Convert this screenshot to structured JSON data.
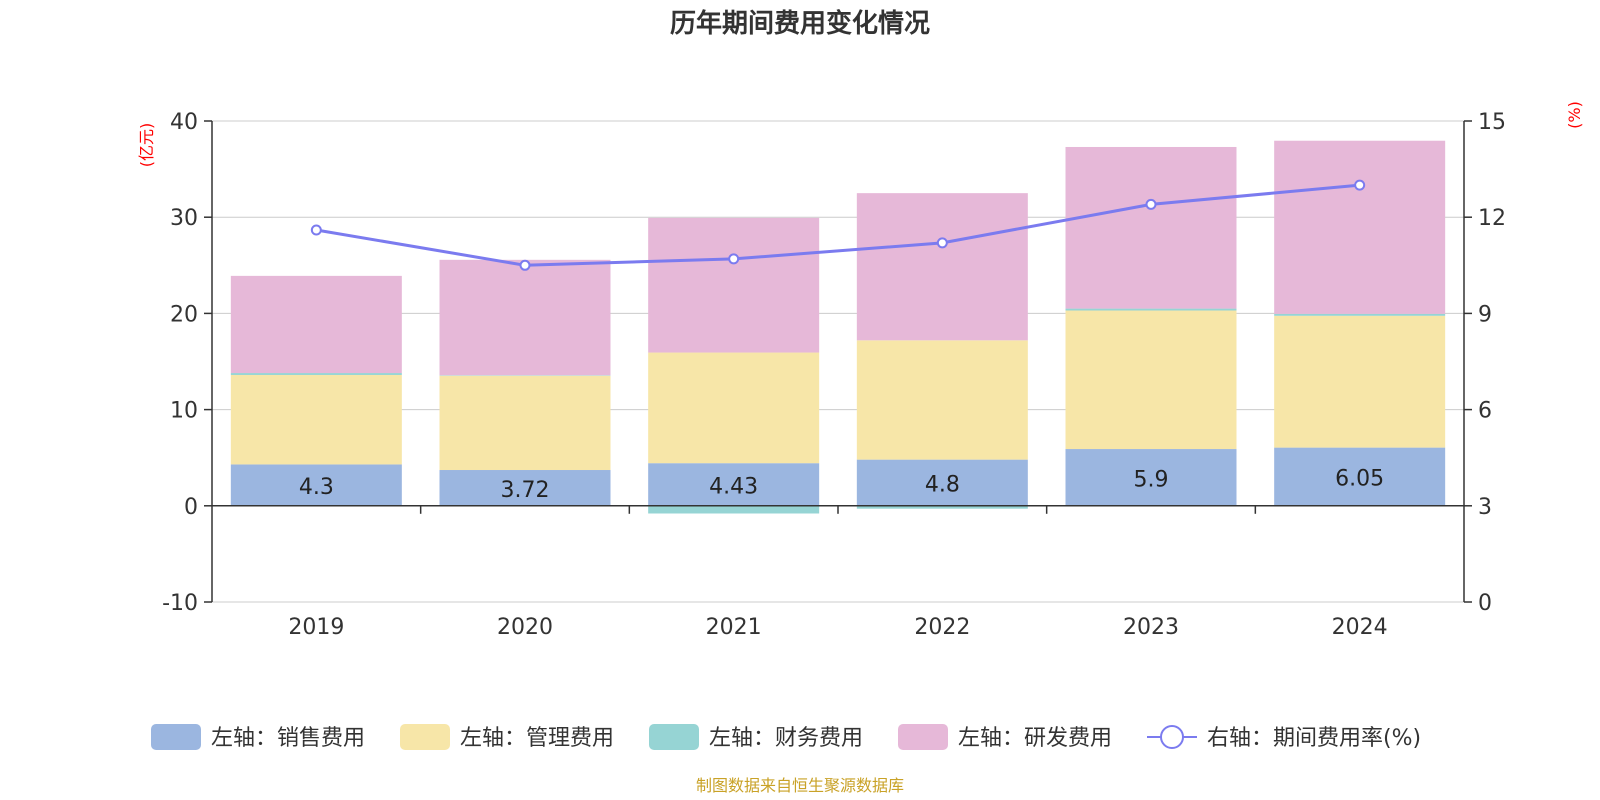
{
  "colors": {
    "sales": "#9bb6e0",
    "admin": "#f7e6a8",
    "finance": "#96d4d4",
    "rd": "#e6b8d8",
    "rate": "#7b7bef",
    "unit": "#ff0000",
    "source": "#c9a227"
  },
  "chart_data": {
    "type": "bar",
    "title": "历年期间费用变化情况",
    "categories": [
      "2019",
      "2020",
      "2021",
      "2022",
      "2023",
      "2024"
    ],
    "left_axis": {
      "unit": "(亿元)",
      "ticks": [
        "40",
        "30",
        "20",
        "10",
        "0",
        "-10"
      ],
      "range": [
        -10,
        40
      ]
    },
    "right_axis": {
      "unit": "(%)",
      "ticks": [
        "15",
        "12",
        "9",
        "6",
        "3",
        "0"
      ],
      "range": [
        0,
        15
      ]
    },
    "series": [
      {
        "key": "sales",
        "name": "左轴：销售费用",
        "values": [
          4.3,
          3.72,
          4.43,
          4.8,
          5.9,
          6.05
        ],
        "labels": [
          "4.3",
          "3.72",
          "4.43",
          "4.8",
          "5.9",
          "6.05"
        ]
      },
      {
        "key": "admin",
        "name": "左轴：管理费用",
        "values": [
          9.3,
          9.8,
          11.5,
          12.4,
          14.4,
          13.7
        ]
      },
      {
        "key": "finance",
        "name": "左轴：财务费用",
        "values": [
          0.2,
          0.05,
          -0.8,
          -0.3,
          0.2,
          0.2
        ]
      },
      {
        "key": "rd",
        "name": "左轴：研发费用",
        "values": [
          10.1,
          12.0,
          14.0,
          15.3,
          16.8,
          18.0
        ]
      }
    ],
    "line": {
      "key": "rate",
      "name": "右轴：期间费用率(%)",
      "values": [
        11.6,
        10.5,
        10.7,
        11.2,
        12.4,
        13.0
      ]
    }
  },
  "source": "制图数据来自恒生聚源数据库"
}
